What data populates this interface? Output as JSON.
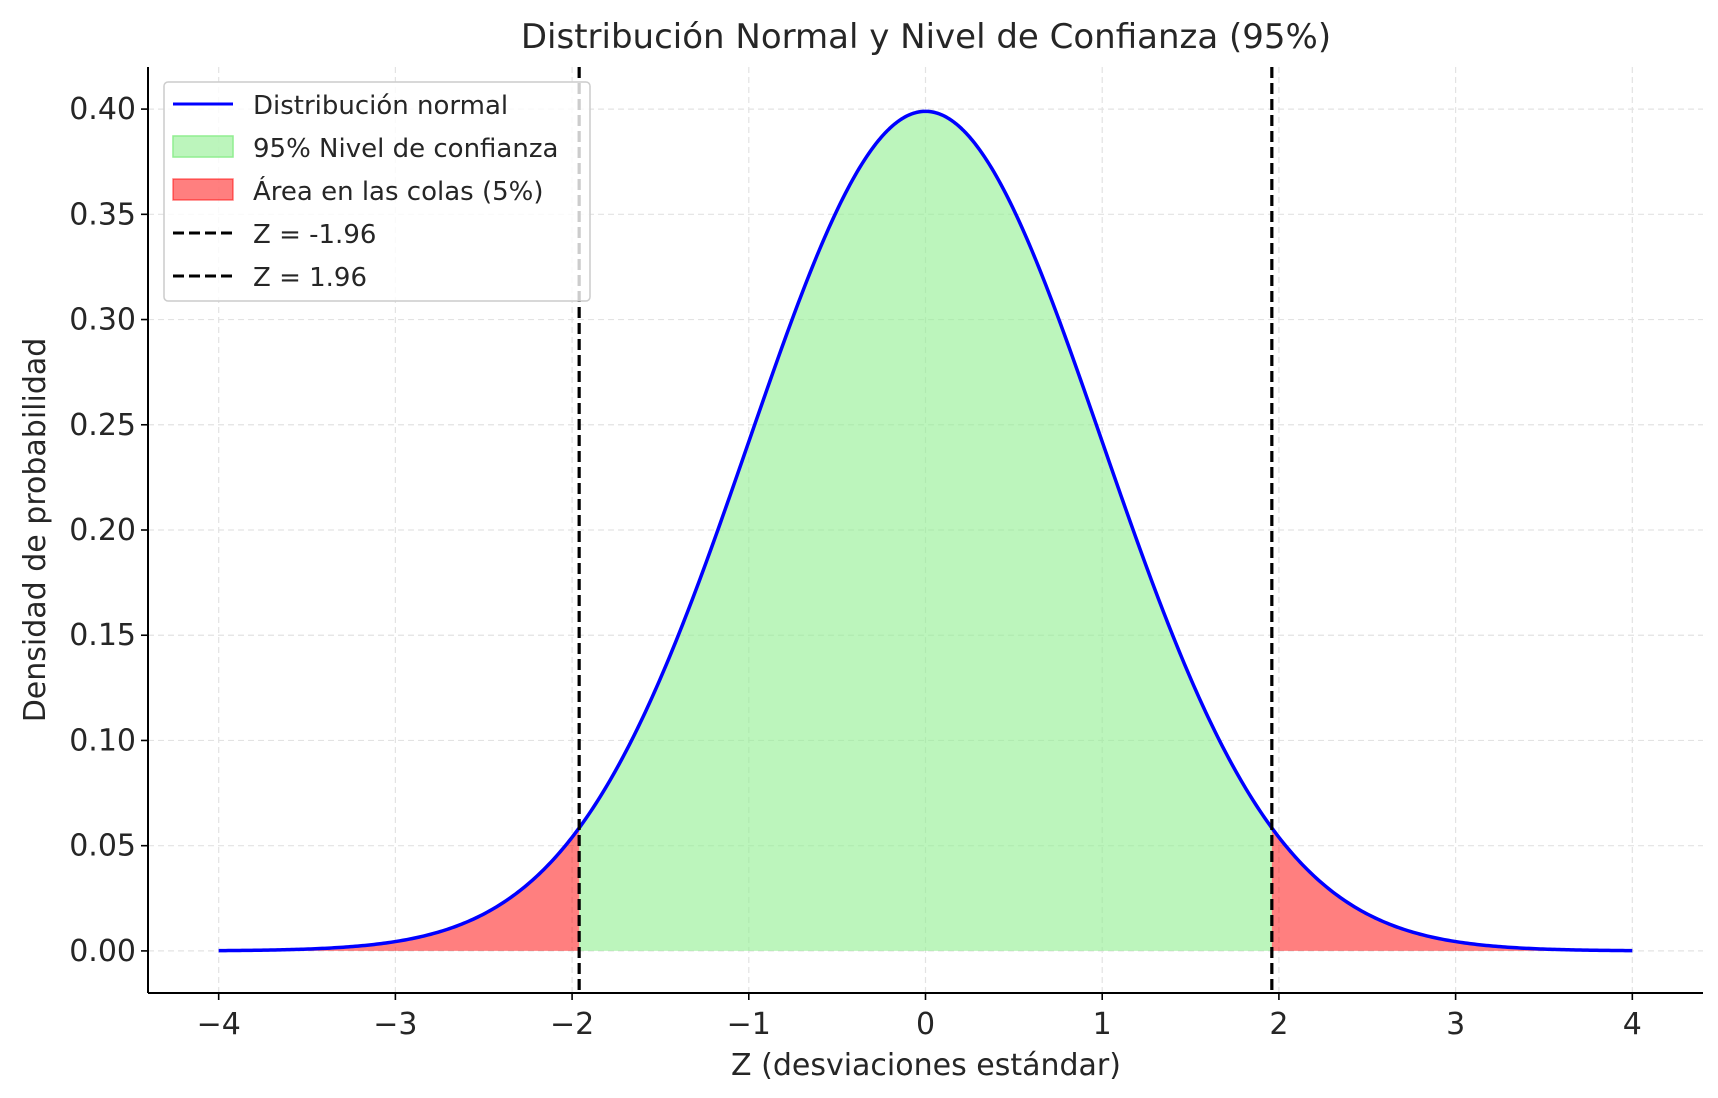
{
  "chart_data": {
    "type": "area",
    "title": "Distribución Normal y Nivel de Confianza (95%)",
    "xlabel": "Z (desviaciones estándar)",
    "ylabel": "Densidad de probabilidad",
    "xlim": [
      -4.4,
      4.4
    ],
    "ylim": [
      -0.02,
      0.42
    ],
    "x_ticks": [
      -4,
      -3,
      -2,
      -1,
      0,
      1,
      2,
      3,
      4
    ],
    "x_tick_labels": [
      "−4",
      "−3",
      "−2",
      "−1",
      "0",
      "1",
      "2",
      "3",
      "4"
    ],
    "y_ticks": [
      0.0,
      0.05,
      0.1,
      0.15,
      0.2,
      0.25,
      0.3,
      0.35,
      0.4
    ],
    "y_tick_labels": [
      "0.00",
      "0.05",
      "0.10",
      "0.15",
      "0.20",
      "0.25",
      "0.30",
      "0.35",
      "0.40"
    ],
    "grid": true,
    "legend_position": "top-left",
    "curve": {
      "function": "standard normal density",
      "mean": 0,
      "std": 1,
      "x_range": [
        -4,
        4
      ]
    },
    "series": [
      {
        "name": "Distribución normal",
        "kind": "line",
        "color": "#0000ff"
      },
      {
        "name": "95% Nivel de confianza",
        "kind": "fill",
        "x_range": [
          -1.96,
          1.96
        ],
        "color": "#90ee90"
      },
      {
        "name": "Área en las colas (5%)",
        "kind": "fill",
        "x_ranges": [
          [
            -4,
            -1.96
          ],
          [
            1.96,
            4
          ]
        ],
        "color": "#ff0000"
      },
      {
        "name": "Z = -1.96",
        "kind": "vline",
        "x": -1.96,
        "color": "#000000",
        "style": "dashed"
      },
      {
        "name": "Z = 1.96",
        "kind": "vline",
        "x": 1.96,
        "color": "#000000",
        "style": "dashed"
      }
    ],
    "peak_value": 0.3989
  }
}
